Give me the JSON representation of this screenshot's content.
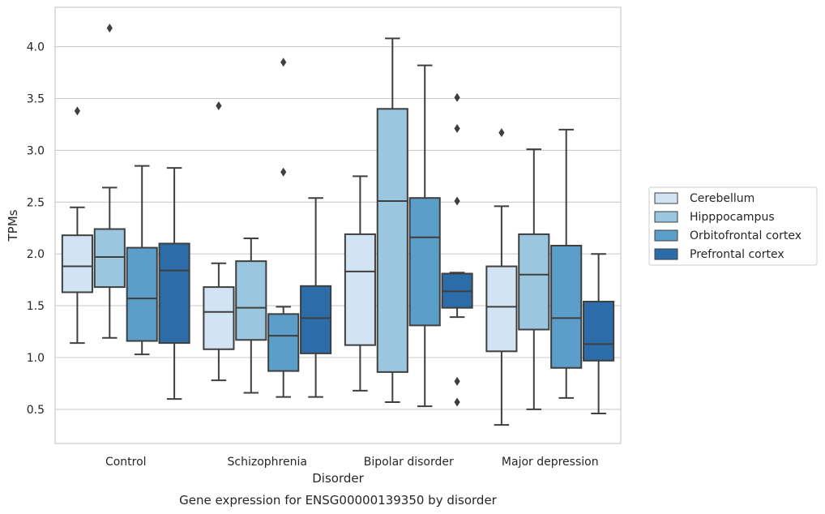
{
  "chart_data": {
    "type": "box",
    "caption": "Gene expression for ENSG00000139350 by disorder",
    "xlabel": "Disorder",
    "ylabel": "TPMs",
    "ylim": [
      0.15,
      4.4
    ],
    "yticks": [
      "0.5",
      "1.0",
      "1.5",
      "2.0",
      "2.5",
      "3.0",
      "3.5",
      "4.0"
    ],
    "grid": true,
    "legend_position": "right",
    "categories": [
      "Control",
      "Schizophrenia",
      "Bipolar disorder",
      "Major depression"
    ],
    "series": [
      {
        "name": "Cerebellum",
        "color": "#d2e3f3",
        "boxes": [
          {
            "min": 1.14,
            "q1": 1.63,
            "median": 1.88,
            "q3": 2.18,
            "max": 2.45,
            "outliers": [
              3.38
            ]
          },
          {
            "min": 0.78,
            "q1": 1.08,
            "median": 1.44,
            "q3": 1.68,
            "max": 1.91,
            "outliers": [
              3.43
            ]
          },
          {
            "min": 0.68,
            "q1": 1.12,
            "median": 1.83,
            "q3": 2.19,
            "max": 2.75,
            "outliers": []
          },
          {
            "min": 0.35,
            "q1": 1.06,
            "median": 1.49,
            "q3": 1.88,
            "max": 2.46,
            "outliers": [
              3.17
            ]
          }
        ]
      },
      {
        "name": "Hipppocampus",
        "color": "#9ac7df",
        "boxes": [
          {
            "min": 1.19,
            "q1": 1.68,
            "median": 1.97,
            "q3": 2.24,
            "max": 2.64,
            "outliers": [
              4.18
            ]
          },
          {
            "min": 0.66,
            "q1": 1.17,
            "median": 1.48,
            "q3": 1.93,
            "max": 2.15,
            "outliers": []
          },
          {
            "min": 0.57,
            "q1": 0.86,
            "median": 2.51,
            "q3": 3.4,
            "max": 4.08,
            "outliers": []
          },
          {
            "min": 0.5,
            "q1": 1.27,
            "median": 1.8,
            "q3": 2.19,
            "max": 3.01,
            "outliers": []
          }
        ]
      },
      {
        "name": "Orbitofrontal cortex",
        "color": "#5a9ec9",
        "boxes": [
          {
            "min": 1.03,
            "q1": 1.16,
            "median": 1.57,
            "q3": 2.06,
            "max": 2.85,
            "outliers": []
          },
          {
            "min": 0.62,
            "q1": 0.87,
            "median": 1.21,
            "q3": 1.42,
            "max": 1.49,
            "outliers": [
              2.79,
              3.85
            ]
          },
          {
            "min": 0.53,
            "q1": 1.31,
            "median": 2.16,
            "q3": 2.54,
            "max": 3.82,
            "outliers": []
          },
          {
            "min": 0.61,
            "q1": 0.9,
            "median": 1.38,
            "q3": 2.08,
            "max": 3.2,
            "outliers": []
          }
        ]
      },
      {
        "name": "Prefrontal cortex",
        "color": "#2c6ca9",
        "boxes": [
          {
            "min": 0.6,
            "q1": 1.14,
            "median": 1.84,
            "q3": 2.1,
            "max": 2.83,
            "outliers": []
          },
          {
            "min": 0.62,
            "q1": 1.04,
            "median": 1.38,
            "q3": 1.69,
            "max": 2.54,
            "outliers": []
          },
          {
            "min": 1.39,
            "q1": 1.48,
            "median": 1.64,
            "q3": 1.81,
            "max": 1.82,
            "outliers": [
              0.57,
              0.77,
              2.51,
              3.21,
              3.51
            ]
          },
          {
            "min": 0.46,
            "q1": 0.97,
            "median": 1.13,
            "q3": 1.54,
            "max": 2.0,
            "outliers": []
          }
        ]
      }
    ]
  }
}
